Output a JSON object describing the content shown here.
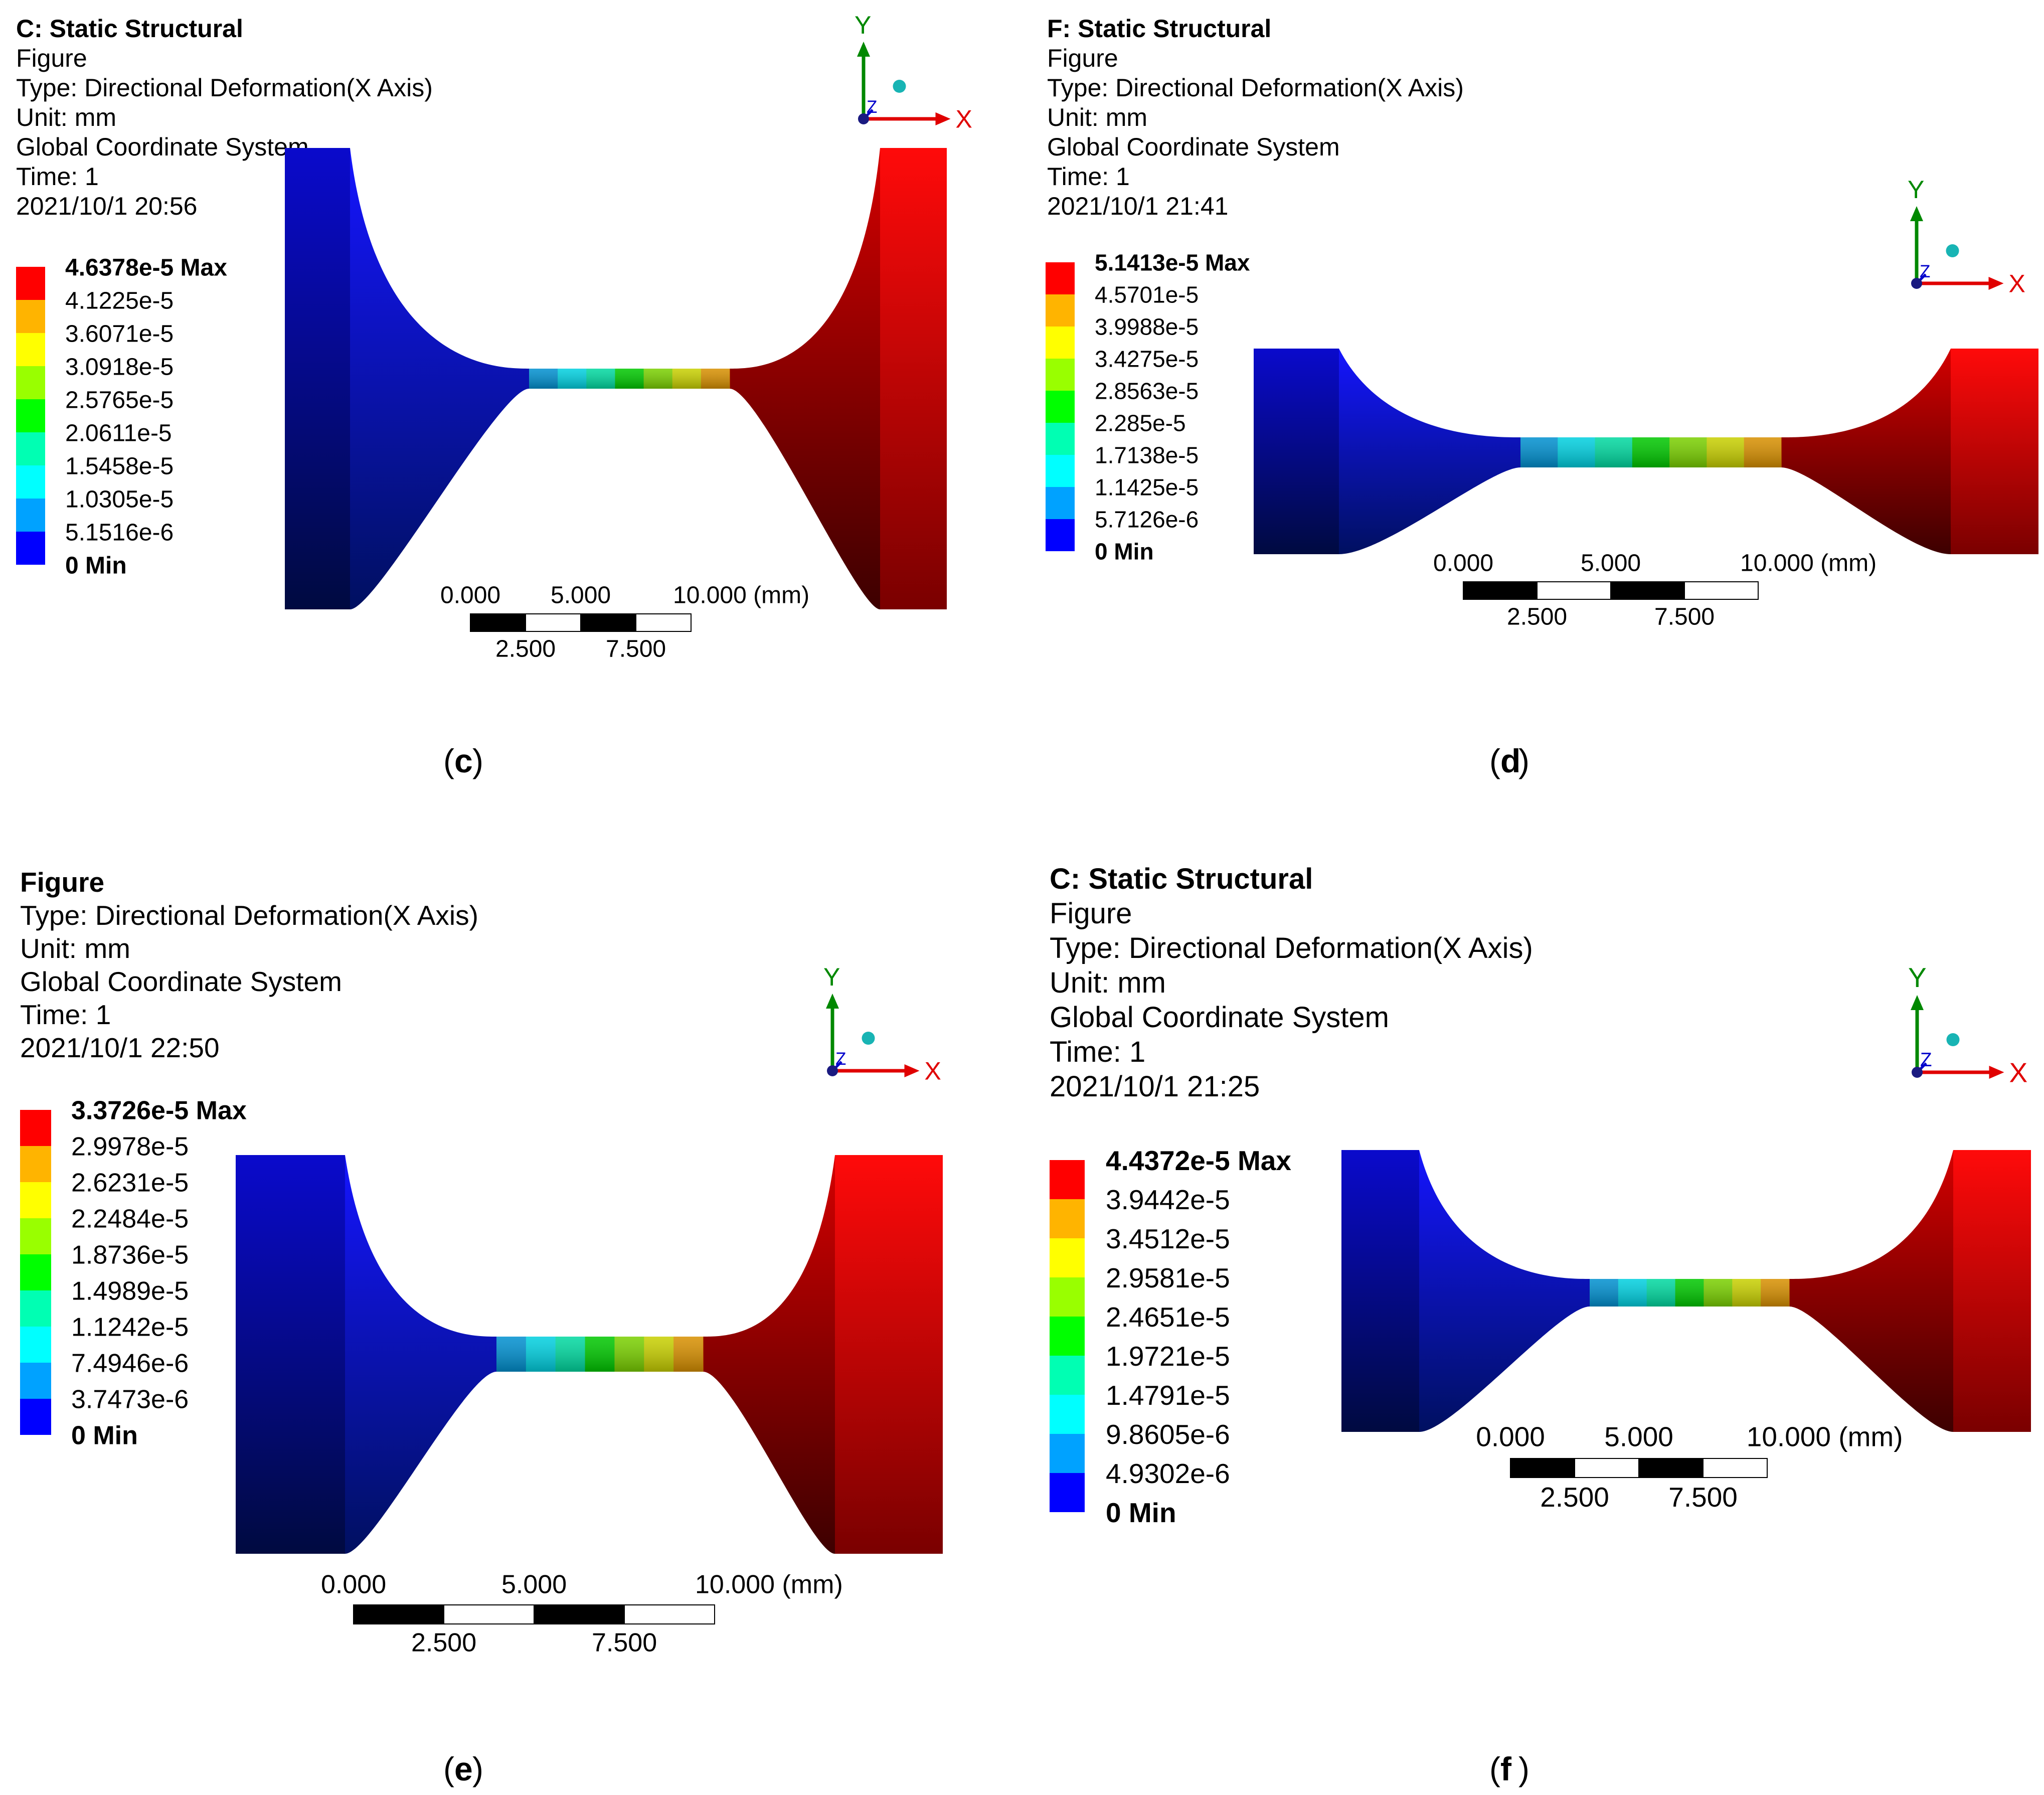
{
  "colors": {
    "scale": [
      "#0000ff",
      "#00a2ff",
      "#00ffff",
      "#00ffb3",
      "#00ff00",
      "#99ff00",
      "#ffff00",
      "#ffb400",
      "#ff0000"
    ],
    "axis_x": "#e00000",
    "axis_y": "#008800",
    "axis_z": "#0000cc"
  },
  "panels": [
    {
      "id": "c",
      "header": [
        "C: Static Structural",
        "Figure",
        "Type: Directional Deformation(X Axis)",
        "Unit: mm",
        "Global Coordinate System",
        "Time: 1",
        "2021/10/1 20:56"
      ],
      "legend": [
        "4.6378e-5 Max",
        "4.1225e-5",
        "3.6071e-5",
        "3.0918e-5",
        "2.5765e-5",
        "2.0611e-5",
        "1.5458e-5",
        "1.0305e-5",
        "5.1516e-6",
        "0 Min"
      ],
      "scale_top": [
        "0.000",
        "5.000",
        "10.000 (mm)"
      ],
      "scale_bottom": [
        "2.500",
        "7.500"
      ],
      "caption": "c"
    },
    {
      "id": "d",
      "header": [
        "F: Static Structural",
        "Figure",
        "Type: Directional Deformation(X Axis)",
        "Unit: mm",
        "Global Coordinate System",
        "Time: 1",
        "2021/10/1 21:41"
      ],
      "legend": [
        "5.1413e-5 Max",
        "4.5701e-5",
        "3.9988e-5",
        "3.4275e-5",
        "2.8563e-5",
        "2.285e-5",
        "1.7138e-5",
        "1.1425e-5",
        "5.7126e-6",
        "0 Min"
      ],
      "scale_top": [
        "0.000",
        "5.000",
        "10.000 (mm)"
      ],
      "scale_bottom": [
        "2.500",
        "7.500"
      ],
      "caption": "d"
    },
    {
      "id": "e",
      "header": [
        "Figure",
        "Type: Directional Deformation(X Axis)",
        "Unit: mm",
        "Global Coordinate System",
        "Time: 1",
        "2021/10/1 22:50"
      ],
      "legend": [
        "3.3726e-5 Max",
        "2.9978e-5",
        "2.6231e-5",
        "2.2484e-5",
        "1.8736e-5",
        "1.4989e-5",
        "1.1242e-5",
        "7.4946e-6",
        "3.7473e-6",
        "0 Min"
      ],
      "scale_top": [
        "0.000",
        "5.000",
        "10.000 (mm)"
      ],
      "scale_bottom": [
        "2.500",
        "7.500"
      ],
      "caption": "e"
    },
    {
      "id": "f",
      "header": [
        "C: Static Structural",
        "Figure",
        "Type: Directional Deformation(X Axis)",
        "Unit: mm",
        "Global Coordinate System",
        "Time: 1",
        "2021/10/1 21:25"
      ],
      "legend": [
        "4.4372e-5 Max",
        "3.9442e-5",
        "3.4512e-5",
        "2.9581e-5",
        "2.4651e-5",
        "1.9721e-5",
        "1.4791e-5",
        "9.8605e-6",
        "4.9302e-6",
        "0 Min"
      ],
      "scale_top": [
        "0.000",
        "5.000",
        "10.000 (mm)"
      ],
      "scale_bottom": [
        "2.500",
        "7.500"
      ],
      "caption": "f"
    }
  ],
  "triad": {
    "x": "X",
    "y": "Y",
    "z": "Z"
  }
}
